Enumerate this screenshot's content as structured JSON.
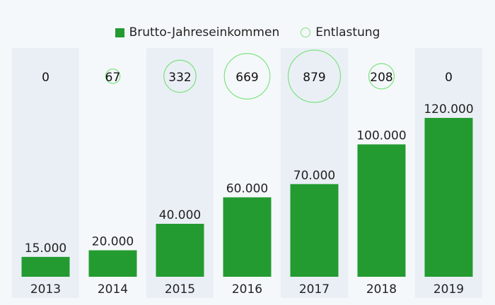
{
  "chart_data": {
    "type": "bar",
    "categories": [
      "2013",
      "2014",
      "2015",
      "2016",
      "2017",
      "2018",
      "2019"
    ],
    "series": [
      {
        "name": "Brutto-Jahreseinkommen",
        "kind": "bar",
        "color": "#239b31",
        "values": [
          15000,
          20000,
          40000,
          60000,
          70000,
          100000,
          120000
        ],
        "labels": [
          "15.000",
          "20.000",
          "40.000",
          "60.000",
          "70.000",
          "100.000",
          "120.000"
        ]
      },
      {
        "name": "Entlastung",
        "kind": "bubble",
        "color": "#7de37d",
        "values": [
          0,
          67,
          332,
          669,
          879,
          208,
          0
        ],
        "labels": [
          "0",
          "67",
          "332",
          "669",
          "879",
          "208",
          "0"
        ]
      }
    ],
    "ylim": [
      0,
      120000
    ],
    "legend": "top-center",
    "grid": false
  },
  "colors": {
    "background": "#f5f8fb",
    "band": "#eaeff6"
  }
}
